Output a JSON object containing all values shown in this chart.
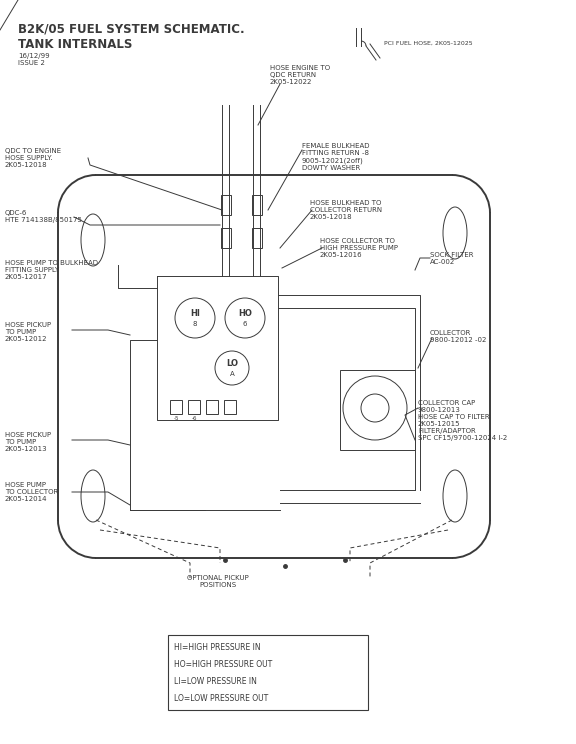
{
  "title_line1": "B2K/05 FUEL SYSTEM SCHEMATIC.",
  "title_line2": "TANK INTERNALS",
  "subtitle1": "16/12/99",
  "subtitle2": "ISSUE 2",
  "line_color": "#3a3a3a",
  "legend_lines": [
    "HI=HIGH PRESSURE IN",
    "HO=HIGH PRESSURE OUT",
    "LI=LOW PRESSURE IN",
    "LO=LOW PRESSURE OUT"
  ],
  "labels": {
    "pci_fuel_hose": "PCI FUEL HOSE, 2K05-12025",
    "hose_engine_to_qdc": "HOSE ENGINE TO\nQDC RETURN\n2K05-12022",
    "qdc_to_engine": "QDC TO ENGINE\nHOSE SUPPLY.\n2K05-12018",
    "female_bulkhead": "FEMALE BULKHEAD\nFITTING RETURN -8\n9005-12021(2off)\nDOWTY WASHER",
    "qdc6": "QDC-6\nHTE 714138B/850175",
    "hose_bulkhead_collector": "HOSE BULKHEAD TO\nCOLLECTOR RETURN\n2K05-12018",
    "hose_collector_hp": "HOSE COLLECTOR TO\nHIGH PRESSURE PUMP\n2K05-12016",
    "hose_pump_bulkhead": "HOSE PUMP TO BULKHEAD\nFITTING SUPPLY\n2K05-12017",
    "sock_filter": "SOCK FILTER\nAC-002",
    "hose_pickup_pump1": "HOSE PICKUP\nTO PUMP\n2K05-12012",
    "collector": "COLLECTOR\n9800-12012 -02",
    "hose_pickup_pump2": "HOSE PICKUP\nTO PUMP\n2K05-12013",
    "collector_cap": "COLLECTOR CAP\n9800-12013\nHOSE CAP TO FILTER\n2K05-12015\nFILTER/ADAPTOR\nSPC CF15/9700-12024 I-2",
    "hose_pump_collector": "HOSE PUMP\nTO COLLECTOR\n2K05-12014",
    "optional_pickup": "OPTIONAL PICKUP\nPOSITIONS"
  }
}
